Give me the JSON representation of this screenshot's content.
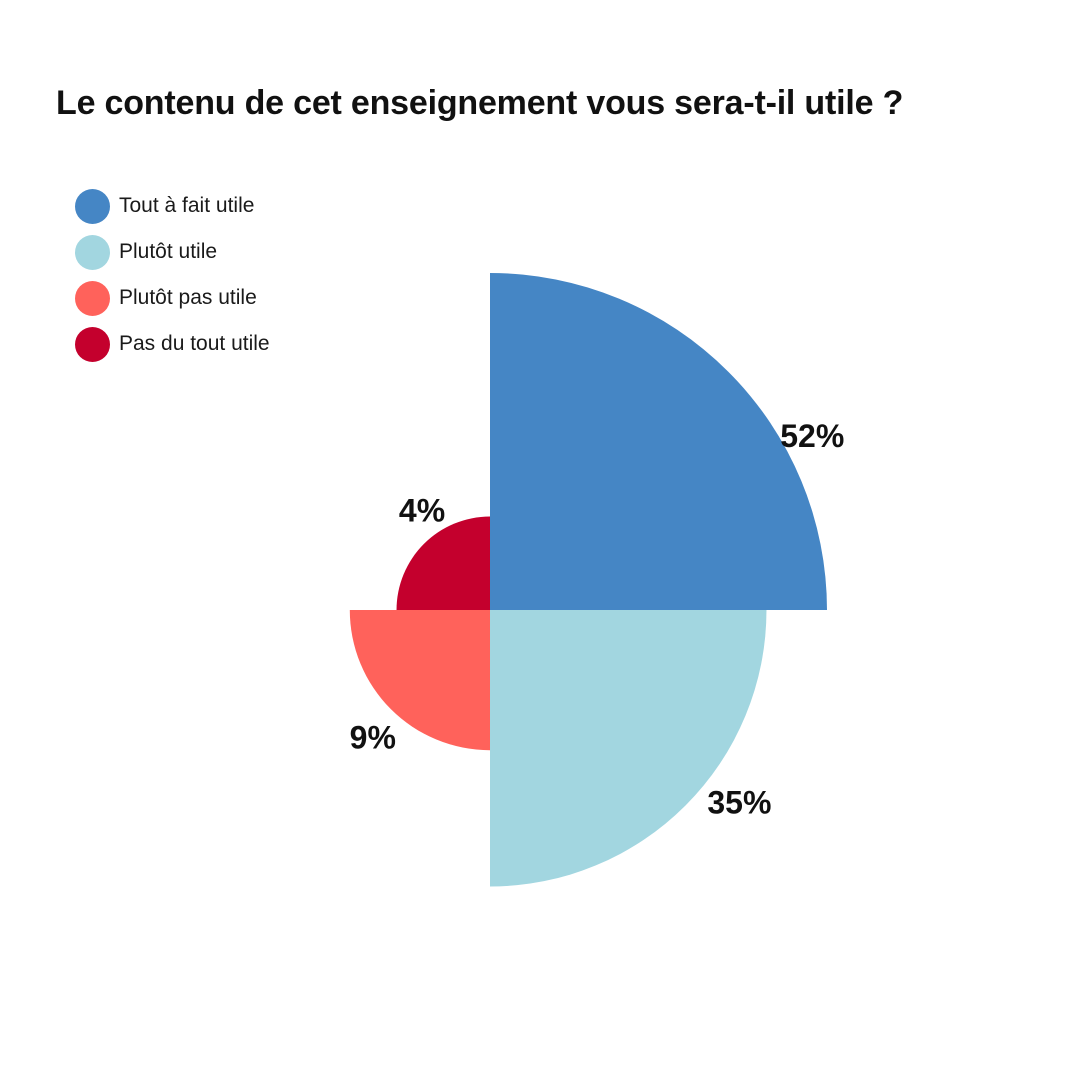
{
  "chart_data": {
    "type": "pie",
    "title": "Le contenu de cet enseignement vous sera-t-il utile ?",
    "variant": "rose",
    "legend_position": "top-left",
    "series": [
      {
        "name": "Tout à fait utile",
        "value": 52,
        "label": "52%",
        "color": "#4586C5"
      },
      {
        "name": "Plutôt utile",
        "value": 35,
        "label": "35%",
        "color": "#A2D6E0"
      },
      {
        "name": "Plutôt pas utile",
        "value": 9,
        "label": "9%",
        "color": "#FF625B"
      },
      {
        "name": "Pas du tout utile",
        "value": 4,
        "label": "4%",
        "color": "#C4002D"
      }
    ]
  }
}
